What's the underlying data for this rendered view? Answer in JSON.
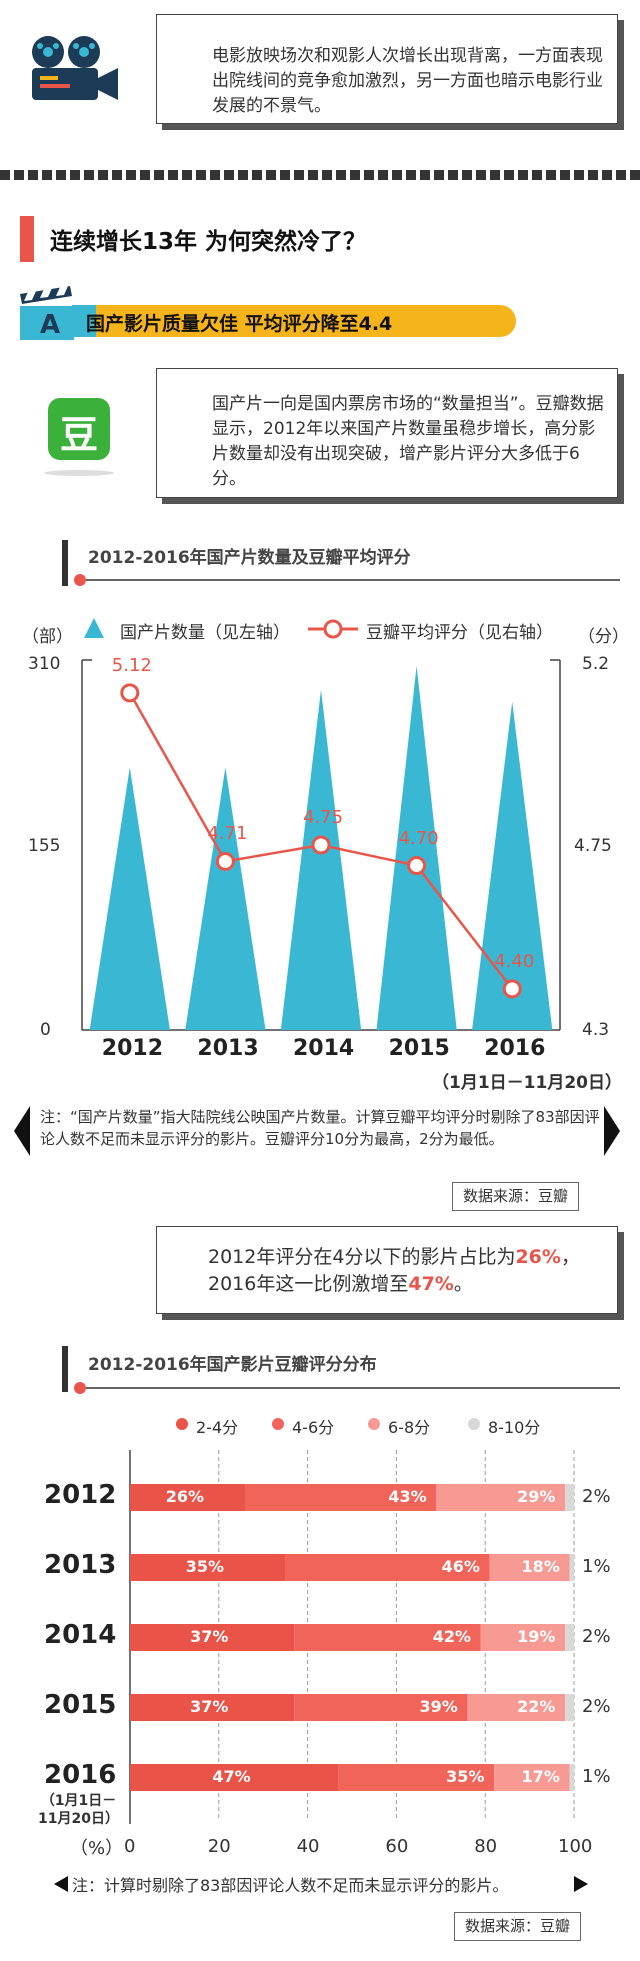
{
  "intro": {
    "text": "电影放映场次和观影人次增长出现背离，一方面表现出院线间的竞争愈加激烈，另一方面也暗示电影行业发展的不景气。"
  },
  "heading": "连续增长13年 为何突然冷了？",
  "section": {
    "badge": "A",
    "title": "国产影片质量欠佳 平均评分降至4.4"
  },
  "douban": {
    "logo": "豆",
    "text": "国产片一向是国内票房市场的“数量担当”。豆瓣数据显示，2012年以来国产片数量虽稳步增长，高分影片数量却没有出现突破，增产影片评分大多低于6分。"
  },
  "chart1": {
    "title": "2012-2016年国产片数量及豆瓣平均评分",
    "left_unit": "（部）",
    "right_unit": "（分）",
    "legend_count": "国产片数量（见左轴）",
    "legend_score": "豆瓣平均评分（见右轴）",
    "left_ticks": [
      "310",
      "155",
      "0"
    ],
    "right_ticks": [
      "5.2",
      "4.75",
      "4.3"
    ],
    "period_note": "（1月1日－11月20日）",
    "note": "注：“国产片数量”指大陆院线公映国产片数量。计算豆瓣平均评分时剔除了83部因评论人数不足而未显示评分的影片。豆瓣评分10分为最高，2分为最低。",
    "source": "数据来源：豆瓣"
  },
  "stat": {
    "line1": "2012年评分在4分以下的影片占比为",
    "pct1": "26%",
    "mid": "，2016年这一比例激增至",
    "pct2": "47%",
    "end": "。"
  },
  "chart2": {
    "title": "2012-2016年国产影片豆瓣评分分布",
    "legend": [
      "2-4分",
      "4-6分",
      "6-8分",
      "8-10分"
    ],
    "x_unit": "（%）",
    "x_ticks": [
      "0",
      "20",
      "40",
      "60",
      "80",
      "100"
    ],
    "period_note": "（1月1日－\n11月20日）",
    "note": "注：计算时剔除了83部因评论人数不足而未显示评分的影片。",
    "source": "数据来源：豆瓣"
  },
  "chart_data": [
    {
      "type": "bar",
      "title": "2012-2016年国产片数量及豆瓣平均评分",
      "categories": [
        "2012",
        "2013",
        "2014",
        "2015",
        "2016"
      ],
      "series": [
        {
          "name": "国产片数量（见左轴）",
          "axis": "left",
          "values": [
            220,
            220,
            285,
            305,
            275
          ],
          "color": "#3ab7d3"
        },
        {
          "name": "豆瓣平均评分（见右轴）",
          "axis": "right",
          "type": "line",
          "values": [
            5.12,
            4.71,
            4.75,
            4.7,
            4.4
          ],
          "labels": [
            "5.12",
            "4.71",
            "4.75",
            "4.70",
            "4.40"
          ],
          "color": "#e8564a"
        }
      ],
      "ylim_left": [
        0,
        310
      ],
      "ylim_right": [
        4.3,
        5.2
      ],
      "legend": "top"
    },
    {
      "type": "bar",
      "stacked": true,
      "orientation": "horizontal",
      "title": "2012-2016年国产影片豆瓣评分分布",
      "categories": [
        "2012",
        "2013",
        "2014",
        "2015",
        "2016"
      ],
      "series": [
        {
          "name": "2-4分",
          "values": [
            26,
            35,
            37,
            37,
            47
          ],
          "color": "#ea5448"
        },
        {
          "name": "4-6分",
          "values": [
            43,
            46,
            42,
            39,
            35
          ],
          "color": "#f1645a"
        },
        {
          "name": "6-8分",
          "values": [
            29,
            18,
            19,
            22,
            17
          ],
          "color": "#f69a93"
        },
        {
          "name": "8-10分",
          "values": [
            2,
            1,
            2,
            2,
            1
          ],
          "color": "#d8d8d8"
        }
      ],
      "labels": [
        [
          "26%",
          "43%",
          "29%",
          "2%"
        ],
        [
          "35%",
          "46%",
          "18%",
          "1%"
        ],
        [
          "37%",
          "42%",
          "19%",
          "2%"
        ],
        [
          "37%",
          "39%",
          "22%",
          "2%"
        ],
        [
          "47%",
          "35%",
          "17%",
          "1%"
        ]
      ],
      "xlim": [
        0,
        100
      ],
      "legend": "top"
    }
  ]
}
